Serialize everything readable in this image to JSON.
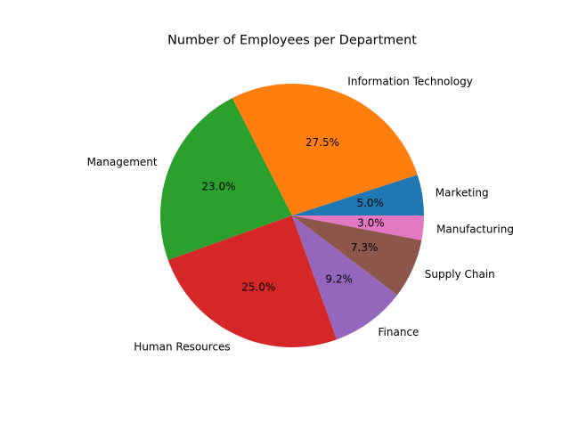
{
  "chart_data": {
    "type": "pie",
    "title": "Number of Employees per Department",
    "start_angle_deg": 0,
    "direction": "counterclockwise",
    "labels": [
      "Marketing",
      "Information Technology",
      "Management",
      "Human Resources",
      "Finance",
      "Supply Chain",
      "Manufacturing"
    ],
    "values": [
      5.0,
      27.5,
      23.0,
      25.0,
      9.2,
      7.3,
      3.0
    ],
    "value_labels": [
      "5.0%",
      "27.5%",
      "23.0%",
      "25.0%",
      "9.2%",
      "7.3%",
      "3.0%"
    ],
    "colors": [
      "#1f77b4",
      "#ff7f0e",
      "#2ca02c",
      "#d62728",
      "#9467bd",
      "#8c564b",
      "#e377c2"
    ]
  }
}
